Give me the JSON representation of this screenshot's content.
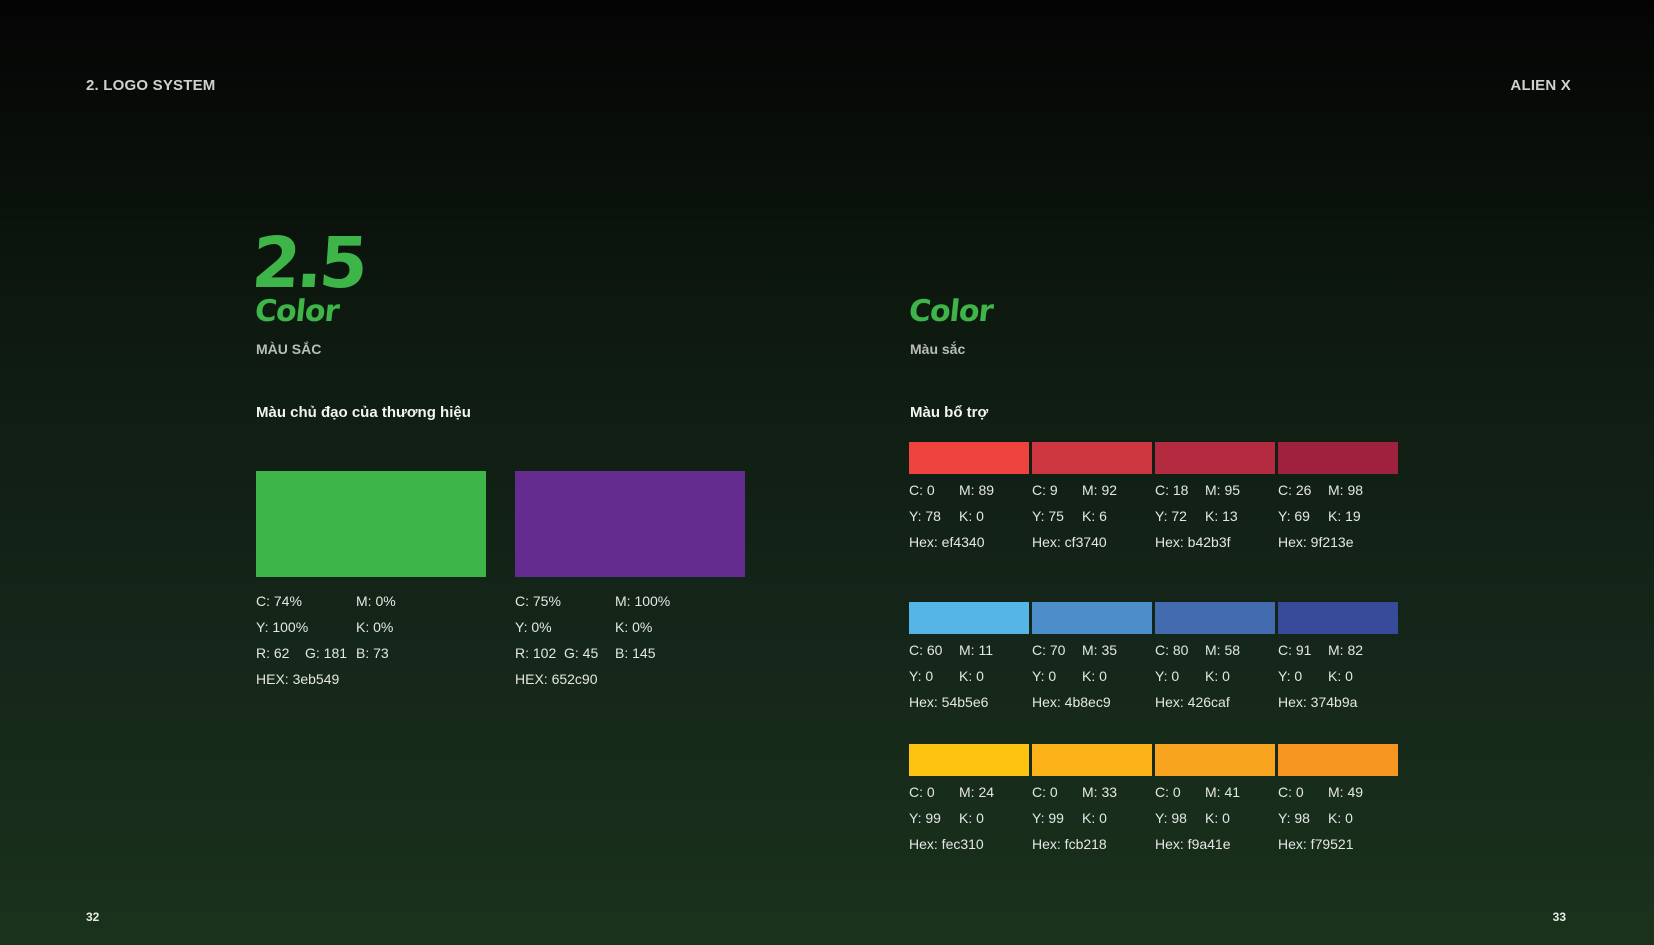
{
  "header": {
    "left": "2. LOGO SYSTEM",
    "right": "ALIEN X"
  },
  "footer": {
    "left_page": "32",
    "right_page": "33"
  },
  "left": {
    "number": "2.5",
    "title": "Color",
    "subtitle": "MÀU SẮC",
    "section_label": "Màu chủ đạo của thương hiệu",
    "primary": [
      {
        "color": "#3eb549",
        "c": "C: 74%",
        "m": "M: 0%",
        "y": "Y: 100%",
        "k": "K: 0%",
        "r": "R: 62",
        "g": "G: 181",
        "b": "B: 73",
        "hex": "HEX: 3eb549"
      },
      {
        "color": "#652c90",
        "c": "C: 75%",
        "m": "M: 100%",
        "y": "Y: 0%",
        "k": "K: 0%",
        "r": "R: 102",
        "g": "G: 45",
        "b": "B: 145",
        "hex": "HEX: 652c90"
      }
    ]
  },
  "right": {
    "title": "Color",
    "subtitle": "Màu sắc",
    "section_label": "Màu bổ trợ",
    "rows": [
      [
        {
          "color": "#ef4340",
          "c": "C: 0",
          "m": "M: 89",
          "y": "Y: 78",
          "k": "K: 0",
          "hex": "Hex: ef4340"
        },
        {
          "color": "#cf3740",
          "c": "C: 9",
          "m": "M: 92",
          "y": "Y: 75",
          "k": "K: 6",
          "hex": "Hex: cf3740"
        },
        {
          "color": "#b42b3f",
          "c": "C: 18",
          "m": "M: 95",
          "y": "Y: 72",
          "k": "K: 13",
          "hex": "Hex: b42b3f"
        },
        {
          "color": "#9f213e",
          "c": "C: 26",
          "m": "M: 98",
          "y": "Y: 69",
          "k": "K: 19",
          "hex": "Hex: 9f213e"
        }
      ],
      [
        {
          "color": "#54b5e6",
          "c": "C: 60",
          "m": "M: 11",
          "y": "Y: 0",
          "k": "K: 0",
          "hex": "Hex: 54b5e6"
        },
        {
          "color": "#4b8ec9",
          "c": "C: 70",
          "m": "M: 35",
          "y": "Y: 0",
          "k": "K: 0",
          "hex": "Hex: 4b8ec9"
        },
        {
          "color": "#426caf",
          "c": "C: 80",
          "m": "M: 58",
          "y": "Y: 0",
          "k": "K: 0",
          "hex": "Hex: 426caf"
        },
        {
          "color": "#374b9a",
          "c": "C: 91",
          "m": "M: 82",
          "y": "Y: 0",
          "k": "K: 0",
          "hex": "Hex: 374b9a"
        }
      ],
      [
        {
          "color": "#fec310",
          "c": "C: 0",
          "m": "M: 24",
          "y": "Y: 99",
          "k": "K: 0",
          "hex": "Hex: fec310"
        },
        {
          "color": "#fcb218",
          "c": "C: 0",
          "m": "M: 33",
          "y": "Y: 99",
          "k": "K: 0",
          "hex": "Hex: fcb218"
        },
        {
          "color": "#f9a41e",
          "c": "C: 0",
          "m": "M: 41",
          "y": "Y: 98",
          "k": "K: 0",
          "hex": "Hex: f9a41e"
        },
        {
          "color": "#f79521",
          "c": "C: 0",
          "m": "M: 49",
          "y": "Y: 98",
          "k": "K: 0",
          "hex": "Hex: f79521"
        }
      ]
    ]
  }
}
